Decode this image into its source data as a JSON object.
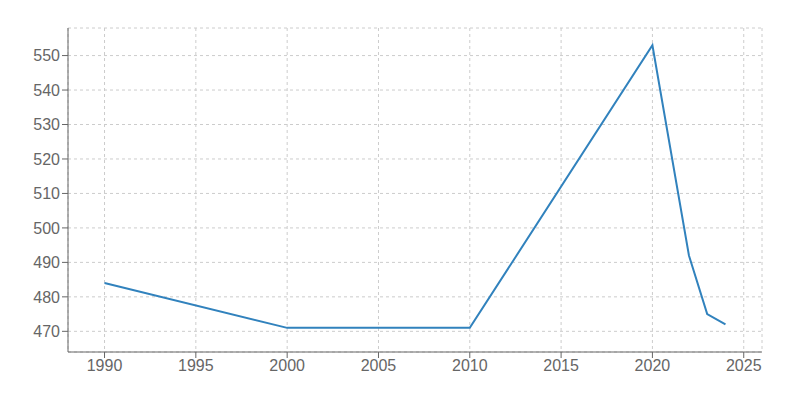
{
  "chart_data": {
    "type": "line",
    "x": [
      1990,
      2000,
      2010,
      2020,
      2022,
      2023,
      2024
    ],
    "values": [
      484,
      471,
      471,
      553,
      492,
      475,
      472
    ],
    "xlim": [
      1988,
      2026
    ],
    "xticks": [
      1990,
      1995,
      2000,
      2005,
      2010,
      2015,
      2020,
      2025
    ],
    "ylim": [
      464,
      558
    ],
    "yticks": [
      470,
      480,
      490,
      500,
      510,
      520,
      530,
      540,
      550
    ],
    "grid": true
  }
}
